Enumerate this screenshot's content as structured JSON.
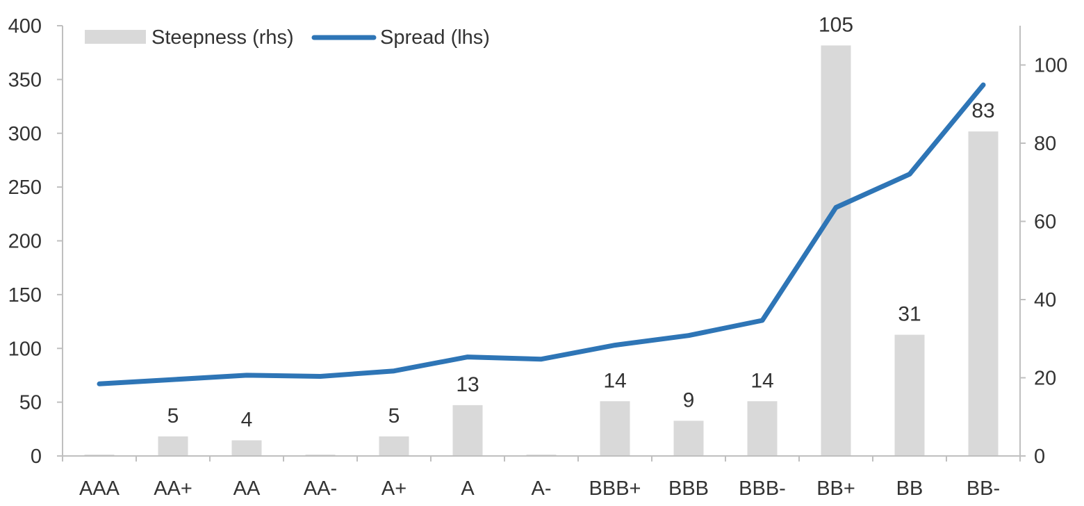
{
  "chart_data": {
    "type": "bar+line",
    "categories": [
      "AAA",
      "AA+",
      "AA",
      "AA-",
      "A+",
      "A",
      "A-",
      "BBB+",
      "BBB",
      "BBB-",
      "BB+",
      "BB",
      "BB-"
    ],
    "series": [
      {
        "name": "Steepness (rhs)",
        "type": "bar",
        "axis": "right",
        "color": "#d9d9d9",
        "values": [
          0,
          5,
          4,
          0,
          5,
          13,
          0,
          14,
          9,
          14,
          105,
          31,
          83
        ],
        "labels": [
          "",
          "5",
          "4",
          "",
          "5",
          "13",
          "",
          "14",
          "9",
          "14",
          "105",
          "31",
          "83"
        ]
      },
      {
        "name": "Spread (lhs)",
        "type": "line",
        "axis": "left",
        "color": "#2e75b6",
        "values": [
          67,
          71,
          75,
          74,
          79,
          92,
          90,
          103,
          112,
          126,
          231,
          262,
          345
        ]
      }
    ],
    "y_left": {
      "min": 0,
      "max": 400,
      "ticks": [
        "0",
        "50",
        "100",
        "150",
        "200",
        "250",
        "300",
        "350",
        "400"
      ]
    },
    "y_right": {
      "min": 0,
      "max": 110,
      "ticks": [
        "0",
        "20",
        "40",
        "60",
        "80",
        "100"
      ]
    },
    "legend": {
      "position": "top-left"
    },
    "grid": false
  }
}
